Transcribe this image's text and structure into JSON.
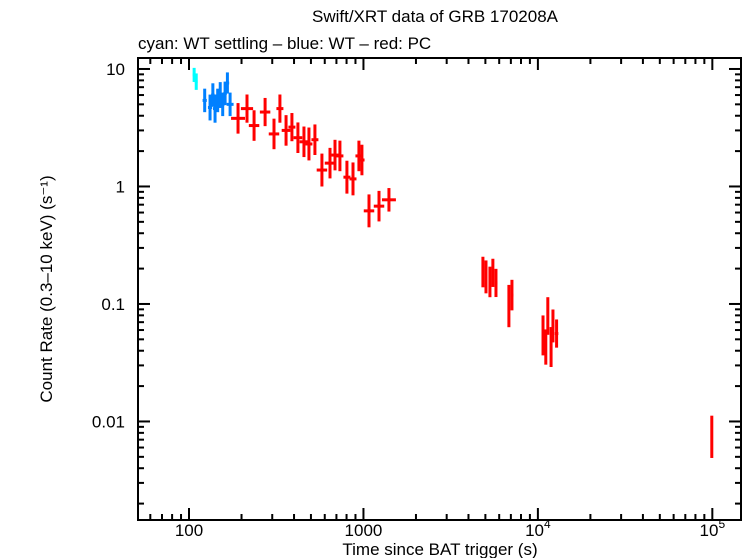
{
  "chart_data": {
    "type": "scatter",
    "title": "Swift/XRT data of GRB 170208A",
    "subtitle": "cyan: WT settling – blue: WT – red: PC",
    "xlabel": "Time since BAT trigger (s)",
    "ylabel": "Count Rate (0.3–10 keV) (s⁻¹)",
    "xscale": "log",
    "yscale": "log",
    "xlim": [
      51,
      146000
    ],
    "ylim": [
      0.00145,
      12.4
    ],
    "grid": false,
    "x_ticks": [
      {
        "value": 100,
        "label": "100"
      },
      {
        "value": 1000,
        "label": "1000"
      },
      {
        "value": 10000,
        "label": "10",
        "exp": "4"
      },
      {
        "value": 100000,
        "label": "10",
        "exp": "5"
      }
    ],
    "y_ticks": [
      {
        "value": 10,
        "label": "10"
      },
      {
        "value": 1,
        "label": "1"
      },
      {
        "value": 0.1,
        "label": "0.1"
      },
      {
        "value": 0.01,
        "label": "0.01"
      }
    ],
    "series": [
      {
        "name": "WT settling",
        "color": "#00ffff",
        "points": [
          [
            107,
            8.9,
            0.008,
            0.06
          ],
          [
            110,
            7.8,
            0.008,
            0.07
          ]
        ]
      },
      {
        "name": "WT",
        "color": "#0080ff",
        "points": [
          [
            123,
            5.4,
            0.012,
            0.1
          ],
          [
            132,
            4.7,
            0.012,
            0.11
          ],
          [
            137,
            6.0,
            0.01,
            0.1
          ],
          [
            141,
            4.6,
            0.012,
            0.12
          ],
          [
            146,
            5.4,
            0.01,
            0.1
          ],
          [
            151,
            6.0,
            0.01,
            0.11
          ],
          [
            156,
            5.0,
            0.01,
            0.1
          ],
          [
            161,
            6.2,
            0.01,
            0.1
          ],
          [
            166,
            7.6,
            0.01,
            0.09
          ],
          [
            172,
            5.0,
            0.02,
            0.1
          ]
        ]
      },
      {
        "name": "PC",
        "color": "#ff0000",
        "points": [
          [
            191,
            3.8,
            0.04,
            0.13
          ],
          [
            215,
            4.6,
            0.035,
            0.12
          ],
          [
            236,
            3.3,
            0.03,
            0.13
          ],
          [
            273,
            4.3,
            0.03,
            0.12
          ],
          [
            307,
            2.8,
            0.03,
            0.13
          ],
          [
            332,
            4.6,
            0.02,
            0.12
          ],
          [
            360,
            3.0,
            0.025,
            0.13
          ],
          [
            389,
            3.2,
            0.02,
            0.12
          ],
          [
            421,
            2.6,
            0.025,
            0.13
          ],
          [
            456,
            2.4,
            0.025,
            0.13
          ],
          [
            487,
            2.3,
            0.02,
            0.14
          ],
          [
            527,
            2.5,
            0.02,
            0.13
          ],
          [
            578,
            1.38,
            0.03,
            0.14
          ],
          [
            643,
            1.58,
            0.03,
            0.13
          ],
          [
            687,
            1.85,
            0.02,
            0.13
          ],
          [
            733,
            1.82,
            0.02,
            0.13
          ],
          [
            804,
            1.2,
            0.02,
            0.14
          ],
          [
            871,
            1.16,
            0.02,
            0.14
          ],
          [
            942,
            1.82,
            0.02,
            0.13
          ],
          [
            980,
            1.68,
            0.015,
            0.13
          ],
          [
            1076,
            0.62,
            0.03,
            0.14
          ],
          [
            1228,
            0.68,
            0.03,
            0.13
          ],
          [
            1400,
            0.77,
            0.04,
            0.1
          ],
          [
            4840,
            0.187,
            0.005,
            0.13
          ],
          [
            5040,
            0.17,
            0.005,
            0.14
          ],
          [
            5310,
            0.154,
            0.006,
            0.13
          ],
          [
            5520,
            0.184,
            0.006,
            0.12
          ],
          [
            5750,
            0.151,
            0.008,
            0.12
          ],
          [
            6820,
            0.096,
            0.005,
            0.18
          ],
          [
            7100,
            0.119,
            0.008,
            0.13
          ],
          [
            10700,
            0.054,
            0.006,
            0.17
          ],
          [
            11100,
            0.043,
            0.006,
            0.15
          ],
          [
            11400,
            0.079,
            0.006,
            0.16
          ],
          [
            11900,
            0.043,
            0.006,
            0.17
          ],
          [
            12200,
            0.065,
            0.008,
            0.14
          ],
          [
            12800,
            0.056,
            0.01,
            0.12
          ],
          [
            99300,
            0.0074,
            0.003,
            0.18
          ]
        ]
      }
    ]
  }
}
